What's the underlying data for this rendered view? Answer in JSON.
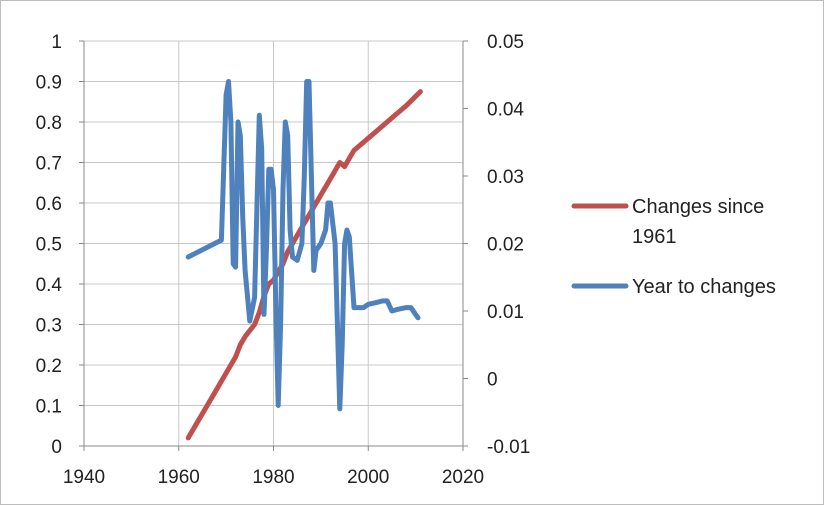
{
  "chart_data": {
    "type": "line",
    "title": "",
    "xlabel": "",
    "ylabel": "",
    "grid": true,
    "legend_position": "right",
    "x_axis": {
      "min": 1940,
      "max": 2020,
      "ticks": [
        1940,
        1960,
        1980,
        2000,
        2020
      ]
    },
    "y_left": {
      "min": 0,
      "max": 1,
      "ticks": [
        0,
        0.1,
        0.2,
        0.3,
        0.4,
        0.5,
        0.6,
        0.7,
        0.8,
        0.9,
        1
      ]
    },
    "y_right": {
      "min": -0.01,
      "max": 0.05,
      "ticks": [
        -0.01,
        0,
        0.01,
        0.02,
        0.03,
        0.04,
        0.05
      ]
    },
    "series": [
      {
        "name": "Changes since 1961",
        "axis": "left",
        "color": "#c0504d",
        "points": [
          [
            1962,
            0.02
          ],
          [
            1964,
            0.06
          ],
          [
            1966,
            0.1
          ],
          [
            1968,
            0.14
          ],
          [
            1970,
            0.18
          ],
          [
            1972,
            0.22
          ],
          [
            1973,
            0.25
          ],
          [
            1974,
            0.27
          ],
          [
            1975,
            0.285
          ],
          [
            1976,
            0.3
          ],
          [
            1977,
            0.33
          ],
          [
            1978,
            0.37
          ],
          [
            1979,
            0.4
          ],
          [
            1980,
            0.41
          ],
          [
            1981,
            0.43
          ],
          [
            1982,
            0.45
          ],
          [
            1983,
            0.48
          ],
          [
            1984,
            0.5
          ],
          [
            1985,
            0.52
          ],
          [
            1986,
            0.54
          ],
          [
            1988,
            0.58
          ],
          [
            1990,
            0.62
          ],
          [
            1992,
            0.66
          ],
          [
            1993,
            0.68
          ],
          [
            1994,
            0.7
          ],
          [
            1995,
            0.69
          ],
          [
            1996,
            0.71
          ],
          [
            1997,
            0.73
          ],
          [
            2000,
            0.76
          ],
          [
            2005,
            0.81
          ],
          [
            2008,
            0.84
          ],
          [
            2011,
            0.875
          ]
        ]
      },
      {
        "name": "Year to changes",
        "axis": "right",
        "color": "#4f81bd",
        "points": [
          [
            1962,
            0.018
          ],
          [
            1969,
            0.0205
          ],
          [
            1970,
            0.042
          ],
          [
            1970.5,
            0.044
          ],
          [
            1971,
            0.038
          ],
          [
            1971.5,
            0.017
          ],
          [
            1972,
            0.0165
          ],
          [
            1972.5,
            0.038
          ],
          [
            1973,
            0.036
          ],
          [
            1973.5,
            0.024
          ],
          [
            1974,
            0.016
          ],
          [
            1975,
            0.0085
          ],
          [
            1976,
            0.012
          ],
          [
            1977,
            0.039
          ],
          [
            1977.5,
            0.034
          ],
          [
            1978,
            0.0095
          ],
          [
            1978.5,
            0.019
          ],
          [
            1979,
            0.031
          ],
          [
            1979.5,
            0.031
          ],
          [
            1980,
            0.028
          ],
          [
            1980.5,
            0.01
          ],
          [
            1981,
            -0.004
          ],
          [
            1981.5,
            0.008
          ],
          [
            1982,
            0.028
          ],
          [
            1982.5,
            0.038
          ],
          [
            1983,
            0.036
          ],
          [
            1983.5,
            0.022
          ],
          [
            1984,
            0.018
          ],
          [
            1985,
            0.0175
          ],
          [
            1986,
            0.02
          ],
          [
            1986.5,
            0.03
          ],
          [
            1987,
            0.044
          ],
          [
            1987.5,
            0.044
          ],
          [
            1988,
            0.03
          ],
          [
            1988.5,
            0.016
          ],
          [
            1989,
            0.019
          ],
          [
            1990,
            0.02
          ],
          [
            1991,
            0.022
          ],
          [
            1991.5,
            0.026
          ],
          [
            1992,
            0.026
          ],
          [
            1993,
            0.02
          ],
          [
            1994,
            -0.0045
          ],
          [
            1994.5,
            0.005
          ],
          [
            1995,
            0.02
          ],
          [
            1995.5,
            0.022
          ],
          [
            1996,
            0.021
          ],
          [
            1997,
            0.0105
          ],
          [
            1999,
            0.0105
          ],
          [
            2000,
            0.011
          ],
          [
            2002,
            0.0113
          ],
          [
            2003,
            0.0115
          ],
          [
            2004,
            0.0115
          ],
          [
            2005,
            0.01
          ],
          [
            2006,
            0.0102
          ],
          [
            2008,
            0.0105
          ],
          [
            2009,
            0.0105
          ],
          [
            2010,
            0.0095
          ],
          [
            2010.5,
            0.009
          ]
        ]
      }
    ]
  }
}
